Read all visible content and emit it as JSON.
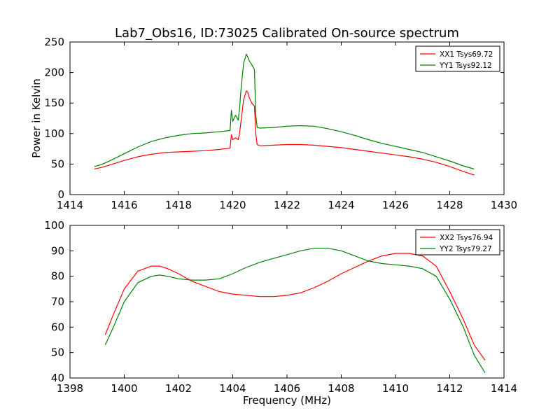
{
  "title": "Lab7_Obs16, ID:73025 Calibrated On-source spectrum",
  "chart_data": [
    {
      "type": "line",
      "title": "",
      "xlabel": "",
      "ylabel": "Power in Kelvin",
      "xlim": [
        1414,
        1430
      ],
      "ylim": [
        0,
        250
      ],
      "xticks": [
        "1414",
        "1416",
        "1418",
        "1420",
        "1422",
        "1424",
        "1426",
        "1428",
        "1430"
      ],
      "yticks": [
        "0",
        "50",
        "100",
        "150",
        "200",
        "250"
      ],
      "grid": false,
      "legend": "top-right",
      "series": [
        {
          "name": "XX1 Tsys69.72",
          "color": "#ff0000",
          "x": [
            1414.9,
            1415.2,
            1415.5,
            1416.0,
            1416.5,
            1417.0,
            1417.5,
            1418.0,
            1418.5,
            1419.0,
            1419.5,
            1419.9,
            1419.95,
            1420.0,
            1420.1,
            1420.2,
            1420.25,
            1420.3,
            1420.4,
            1420.5,
            1420.55,
            1420.6,
            1420.7,
            1420.8,
            1420.85,
            1420.9,
            1421.0,
            1421.5,
            1422.0,
            1422.5,
            1423.0,
            1423.5,
            1424.0,
            1424.5,
            1425.0,
            1425.5,
            1426.0,
            1426.5,
            1427.0,
            1427.5,
            1428.0,
            1428.5,
            1428.9
          ],
          "y": [
            42,
            45,
            49,
            56,
            62,
            66,
            69,
            70,
            71,
            72,
            74,
            76,
            98,
            90,
            93,
            90,
            100,
            118,
            155,
            170,
            168,
            160,
            150,
            145,
            100,
            82,
            80,
            81,
            82,
            82,
            81,
            79,
            77,
            74,
            71,
            68,
            65,
            62,
            58,
            53,
            46,
            38,
            32
          ]
        },
        {
          "name": "YY1 Tsys92.12",
          "color": "#008000",
          "x": [
            1414.9,
            1415.2,
            1415.5,
            1416.0,
            1416.5,
            1417.0,
            1417.5,
            1418.0,
            1418.5,
            1419.0,
            1419.5,
            1419.9,
            1419.95,
            1420.0,
            1420.1,
            1420.2,
            1420.25,
            1420.3,
            1420.4,
            1420.5,
            1420.55,
            1420.6,
            1420.7,
            1420.8,
            1420.85,
            1420.9,
            1421.0,
            1421.5,
            1422.0,
            1422.5,
            1423.0,
            1423.5,
            1424.0,
            1424.5,
            1425.0,
            1425.5,
            1426.0,
            1426.5,
            1427.0,
            1427.5,
            1428.0,
            1428.5,
            1428.9
          ],
          "y": [
            46,
            50,
            56,
            67,
            78,
            87,
            93,
            97,
            100,
            101,
            103,
            105,
            138,
            120,
            130,
            122,
            140,
            170,
            215,
            230,
            226,
            220,
            213,
            205,
            130,
            110,
            109,
            110,
            112,
            113,
            112,
            108,
            103,
            97,
            90,
            84,
            79,
            74,
            69,
            62,
            55,
            47,
            42
          ]
        }
      ]
    },
    {
      "type": "line",
      "title": "",
      "xlabel": "Frequency (MHz)",
      "ylabel": "",
      "xlim": [
        1398,
        1414
      ],
      "ylim": [
        40,
        100
      ],
      "xticks": [
        "1398",
        "1400",
        "1402",
        "1404",
        "1406",
        "1408",
        "1410",
        "1412",
        "1414"
      ],
      "yticks": [
        "40",
        "50",
        "60",
        "70",
        "80",
        "90",
        "100"
      ],
      "grid": false,
      "legend": "top-right",
      "series": [
        {
          "name": "XX2 Tsys76.94",
          "color": "#ff0000",
          "x": [
            1399.3,
            1399.6,
            1400.0,
            1400.5,
            1401.0,
            1401.3,
            1401.6,
            1402.0,
            1402.5,
            1403.0,
            1403.5,
            1404.0,
            1404.5,
            1405.0,
            1405.5,
            1406.0,
            1406.5,
            1407.0,
            1407.5,
            1408.0,
            1408.5,
            1409.0,
            1409.5,
            1410.0,
            1410.5,
            1411.0,
            1411.5,
            1412.0,
            1412.5,
            1412.9,
            1413.3
          ],
          "y": [
            57,
            65,
            75,
            82,
            84,
            84,
            83,
            81,
            78,
            76,
            74,
            73,
            72.5,
            72,
            72,
            72.5,
            73.5,
            75.5,
            78,
            81,
            83.5,
            86,
            88,
            89,
            89,
            88,
            84,
            74,
            63,
            53,
            47
          ]
        },
        {
          "name": "YY2 Tsys79.27",
          "color": "#008000",
          "x": [
            1399.3,
            1399.6,
            1400.0,
            1400.5,
            1401.0,
            1401.3,
            1401.6,
            1402.0,
            1402.5,
            1403.0,
            1403.5,
            1404.0,
            1404.5,
            1405.0,
            1405.5,
            1406.0,
            1406.5,
            1407.0,
            1407.5,
            1408.0,
            1408.5,
            1409.0,
            1409.5,
            1410.0,
            1410.5,
            1411.0,
            1411.5,
            1412.0,
            1412.5,
            1412.9,
            1413.3
          ],
          "y": [
            53,
            60,
            70,
            77.5,
            80,
            80.5,
            80,
            79,
            78.5,
            78.5,
            79,
            81,
            83.5,
            85.5,
            87,
            88.5,
            90,
            91,
            91,
            90,
            88,
            86,
            85,
            84.5,
            84,
            83,
            80,
            71,
            60,
            49,
            42
          ]
        }
      ]
    }
  ]
}
